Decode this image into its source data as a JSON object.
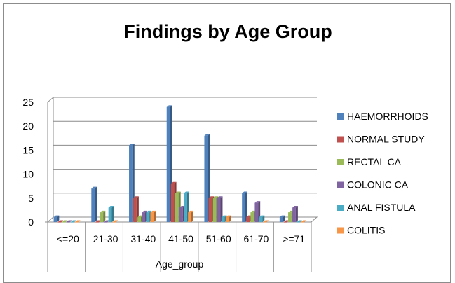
{
  "chart_data": {
    "type": "bar",
    "title": "Findings by Age Group",
    "xlabel": "Age_group",
    "ylabel": "",
    "ylim": [
      0,
      25
    ],
    "yticks": [
      0,
      5,
      10,
      15,
      20,
      25
    ],
    "grid": false,
    "legend_position": "right",
    "categories": [
      "<=20",
      "21-30",
      "31-40",
      "41-50",
      "51-60",
      "61-70",
      ">=71"
    ],
    "series": [
      {
        "name": "HAEMORRHOIDS",
        "color": "#4f81bd",
        "values": [
          1,
          7,
          16,
          24,
          18,
          6,
          1
        ]
      },
      {
        "name": "NORMAL STUDY",
        "color": "#c0504d",
        "values": [
          0,
          0,
          5,
          8,
          5,
          1,
          0
        ]
      },
      {
        "name": "RECTAL CA",
        "color": "#9bbb59",
        "values": [
          0,
          2,
          1,
          6,
          5,
          2,
          2
        ]
      },
      {
        "name": "COLONIC CA",
        "color": "#8064a2",
        "values": [
          0,
          0,
          2,
          3,
          5,
          4,
          3
        ]
      },
      {
        "name": "ANAL FISTULA",
        "color": "#4bacc6",
        "values": [
          0,
          3,
          2,
          6,
          1,
          1,
          0
        ]
      },
      {
        "name": "COLITIS",
        "color": "#f79646",
        "values": [
          0,
          0,
          2,
          2,
          1,
          0,
          0
        ]
      }
    ]
  }
}
